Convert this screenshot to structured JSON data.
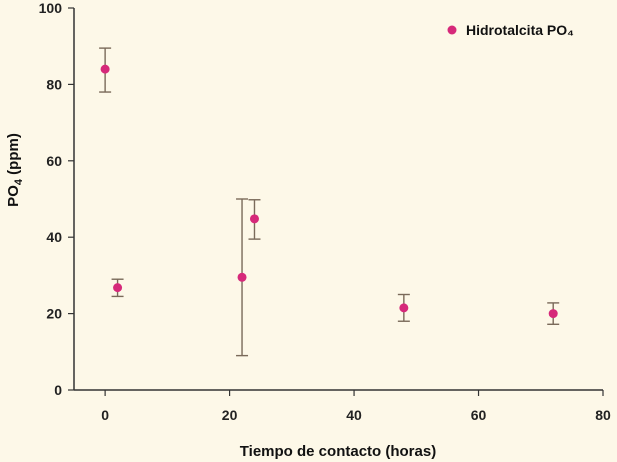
{
  "chart_data": {
    "type": "scatter",
    "title": "",
    "xlabel": "Tiempo de contacto (horas)",
    "ylabel_main": "PO",
    "ylabel_sub": "4",
    "ylabel_rest": " (ppm)",
    "xlim": [
      -5,
      80
    ],
    "ylim": [
      0,
      100
    ],
    "xticks": [
      0,
      20,
      40,
      60,
      80
    ],
    "yticks": [
      0,
      20,
      40,
      60,
      80,
      100
    ],
    "grid": false,
    "legend_position": "top-right",
    "series": [
      {
        "name": "Hidrotalcita PO₄",
        "color": "#d6297a",
        "points": [
          {
            "x": 0,
            "y": 84,
            "err_low": 78,
            "err_high": 89.5
          },
          {
            "x": 2,
            "y": 26.8,
            "err_low": 24.5,
            "err_high": 29
          },
          {
            "x": 22,
            "y": 29.5,
            "err_low": 9,
            "err_high": 50
          },
          {
            "x": 24,
            "y": 44.8,
            "err_low": 39.5,
            "err_high": 49.8
          },
          {
            "x": 48,
            "y": 21.5,
            "err_low": 18,
            "err_high": 25
          },
          {
            "x": 72,
            "y": 20,
            "err_low": 17.2,
            "err_high": 22.8
          }
        ]
      }
    ]
  }
}
